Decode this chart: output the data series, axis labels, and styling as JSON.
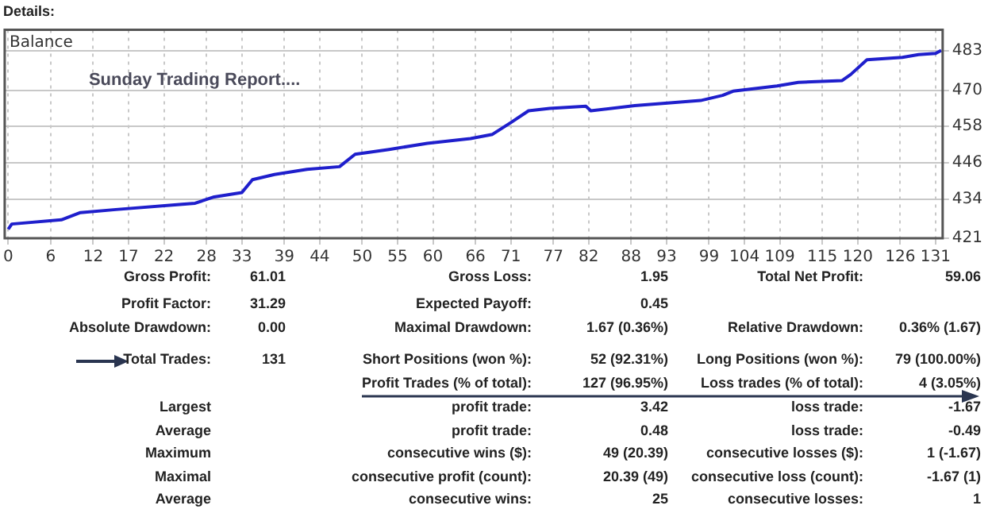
{
  "chart_data": {
    "type": "line",
    "title": "Details:",
    "subtitle": "Sunday Trading Report....",
    "xlim": [
      -0.5,
      132
    ],
    "xticks": [
      0,
      6,
      12,
      17,
      22,
      28,
      33,
      39,
      44,
      50,
      55,
      60,
      66,
      71,
      77,
      82,
      88,
      93,
      99,
      104,
      109,
      115,
      120,
      126,
      131
    ],
    "ylim": [
      421,
      490
    ],
    "yticks": [
      421,
      434,
      446,
      458,
      470,
      483
    ],
    "grid": true,
    "legend": false,
    "marker": "none",
    "line_style": "solid",
    "series": [
      {
        "color": "#1f1fcc",
        "x": [
          0,
          0.5,
          7.5,
          10.2,
          15.2,
          26.4,
          29.1,
          33,
          34.5,
          37.6,
          42.2,
          46.8,
          49,
          53.8,
          59.2,
          65.3,
          68.4,
          71,
          73.5,
          76.5,
          81.6,
          82.3,
          88.5,
          97.8,
          100.9,
          102.4,
          108.6,
          111.6,
          117.8,
          119,
          121.3,
          126.3,
          128.6,
          131,
          131.8
        ],
        "values": [
          424,
          425.7,
          427.1,
          429.5,
          430.5,
          432.6,
          434.7,
          436.1,
          440.4,
          442.1,
          443.8,
          444.7,
          448.8,
          450.4,
          452.4,
          454,
          455.4,
          459.3,
          463.2,
          464,
          464.7,
          463.2,
          464.9,
          466.6,
          468.3,
          469.7,
          471.4,
          472.6,
          473.2,
          475.2,
          480.1,
          480.9,
          481.8,
          482.2,
          483.2
        ]
      }
    ],
    "annotations": [
      "Balance",
      "Gross Profit:",
      "61.01",
      "Gross Loss:",
      "1.95",
      "Total Net Profit:",
      "59.06",
      "Profit Factor:",
      "31.29",
      "Expected Payoff:",
      "0.45",
      "Absolute Drawdown:",
      "0.00",
      "Maximal Drawdown:",
      "1.67 (0.36%)",
      "Relative Drawdown:",
      "0.36% (1.67)",
      "Total Trades:",
      "131",
      "Short Positions (won %):",
      "52 (92.31%)",
      "Long Positions (won %):",
      "79 (100.00%)",
      "Profit Trades (% of total):",
      "127 (96.95%)",
      "Loss trades (% of total):",
      "4 (3.05%)",
      "Largest",
      "profit trade:",
      "3.42",
      "loss trade:",
      "-1.67",
      "Average",
      "profit trade:",
      "0.48",
      "loss trade:",
      "-0.49",
      "Maximum",
      "consecutive wins ($):",
      "49 (20.39)",
      "consecutive losses ($):",
      "1 (-1.67)",
      "Maximal",
      "consecutive profit (count):",
      "20.39 (49)",
      "consecutive loss (count):",
      "-1.67 (1)",
      "Average",
      "consecutive wins:",
      "25",
      "consecutive losses:",
      "1"
    ]
  }
}
